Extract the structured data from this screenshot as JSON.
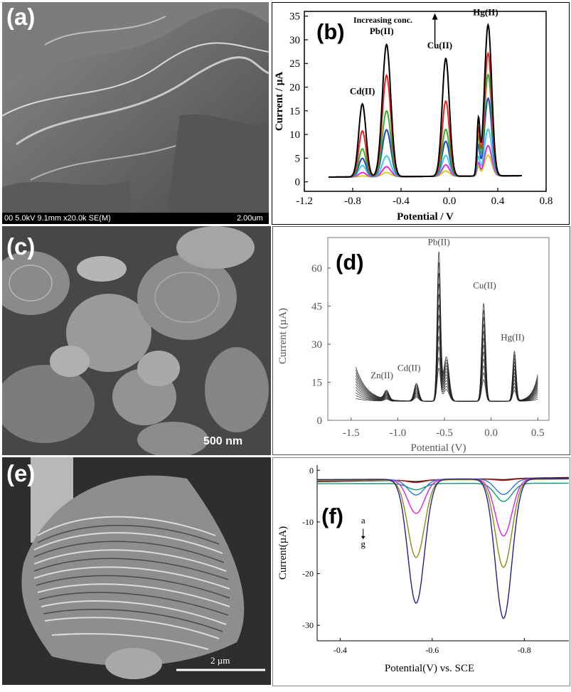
{
  "panels": {
    "a": {
      "label": "(a)",
      "meta_left": "00 5.0kV 9.1mm x20.0k SE(M)",
      "meta_right": "2.00um"
    },
    "b": {
      "label": "(b)"
    },
    "c": {
      "label": "(c)",
      "scale": "500 nm"
    },
    "d": {
      "label": "(d)"
    },
    "e": {
      "label": "(e)",
      "scale": "2 µm"
    },
    "f": {
      "label": "(f)"
    }
  },
  "chart_data": [
    {
      "id": "b",
      "type": "line",
      "xlabel": "Potential / V",
      "ylabel": "Current / µA",
      "xlim": [
        -1.2,
        0.8
      ],
      "ylim": [
        -2,
        36
      ],
      "xticks": [
        "-1.2",
        "-0.8",
        "-0.4",
        "0.0",
        "0.4",
        "0.8"
      ],
      "yticks": [
        "0",
        "5",
        "10",
        "15",
        "20",
        "25",
        "30",
        "35"
      ],
      "annotations": [
        "Cd(II)",
        "Pb(II)",
        "Cu(II)",
        "Hg(II)",
        "Increasing conc."
      ],
      "peaks": [
        {
          "ion": "Cd(II)",
          "potential": -0.72
        },
        {
          "ion": "Pb(II)",
          "potential": -0.52
        },
        {
          "ion": "Cu(II)",
          "potential": -0.03
        },
        {
          "ion": "Hg(II)",
          "potential": 0.32
        }
      ],
      "x_range": [
        -1.0,
        0.6
      ],
      "baseline_start": 1.0,
      "baseline_end": 1.3,
      "series": [
        {
          "color": "#000000",
          "peaks": [
            16.5,
            29,
            26,
            33
          ]
        },
        {
          "color": "#e8241c",
          "peaks": [
            10.8,
            22.5,
            17,
            27
          ]
        },
        {
          "color": "#36b030",
          "peaks": [
            7,
            15,
            11,
            22.5
          ]
        },
        {
          "color": "#2047c8",
          "peaks": [
            5,
            11,
            8.5,
            17.5
          ]
        },
        {
          "color": "#3ec8f0",
          "peaks": [
            3.5,
            5.5,
            5.5,
            11
          ]
        },
        {
          "color": "#e02ce0",
          "peaks": [
            2,
            3.2,
            3.5,
            7.5
          ]
        },
        {
          "color": "#d8d020",
          "peaks": [
            1.3,
            2,
            2.2,
            5.5
          ]
        }
      ]
    },
    {
      "id": "d",
      "type": "line",
      "xlabel": "Potential (V)",
      "ylabel": "Current (µA)",
      "xlim": [
        -1.75,
        0.62
      ],
      "ylim": [
        0,
        72
      ],
      "xticks": [
        "-1.5",
        "-1.0",
        "-0.5",
        "0.0",
        "0.5"
      ],
      "yticks": [
        "0",
        "15",
        "30",
        "45",
        "60"
      ],
      "annotations": [
        "Zn(II)",
        "Cd(II)",
        "Pb(II)",
        "Cu(II)",
        "Hg(II)"
      ],
      "peaks": [
        {
          "ion": "Zn(II)",
          "potential": -1.12
        },
        {
          "ion": "Cd(II)",
          "potential": -0.8
        },
        {
          "ion": "Pb(II)",
          "potential": -0.56
        },
        {
          "ion": "Cu(II)",
          "potential": -0.08
        },
        {
          "ion": "Hg(II)",
          "potential": 0.25
        }
      ],
      "x_range": [
        -1.45,
        0.5
      ],
      "baseline": 7.5,
      "series_count": 12,
      "max_peaks": [
        11,
        14.5,
        66,
        46,
        27
      ],
      "shoulder": {
        "potential": -0.48,
        "max": 25
      },
      "start_max": 21,
      "end_max": 18
    },
    {
      "id": "f",
      "type": "line",
      "xlabel": "Potential(V) vs. SCE",
      "ylabel": "Current(µA)",
      "xlim": [
        -0.35,
        -0.9
      ],
      "ylim": [
        -33,
        1
      ],
      "xticks": [
        "-0.4",
        "-0.6",
        "-0.8"
      ],
      "yticks": [
        "0",
        "-10",
        "-20",
        "-30"
      ],
      "annotations": [
        "a",
        "g"
      ],
      "peaks": [
        {
          "potential": -0.565
        },
        {
          "potential": -0.755
        }
      ],
      "x_range": [
        -0.35,
        -0.9
      ],
      "series": [
        {
          "color": "#000000",
          "peaks": [
            0.3,
            0.2
          ],
          "y0": -2.2,
          "y1": -1.4
        },
        {
          "color": "#c8201a",
          "peaks": [
            0.5,
            0.3
          ],
          "y0": -2.1,
          "y1": -1.5
        },
        {
          "color": "#10987a",
          "peaks": [
            1.2,
            3.5
          ],
          "y0": -2.6,
          "y1": -2.5
        },
        {
          "color": "#2a78d0",
          "peaks": [
            3.0,
            3.0
          ],
          "y0": -1.9,
          "y1": -1.6
        },
        {
          "color": "#e020e0",
          "peaks": [
            6.5,
            11.0
          ],
          "y0": -2.0,
          "y1": -1.6
        },
        {
          "color": "#8a8a18",
          "peaks": [
            15.0,
            17.0
          ],
          "y0": -2.0,
          "y1": -1.7
        },
        {
          "color": "#20208a",
          "peaks": [
            24.0,
            27.0
          ],
          "y0": -1.8,
          "y1": -1.6
        }
      ]
    }
  ]
}
